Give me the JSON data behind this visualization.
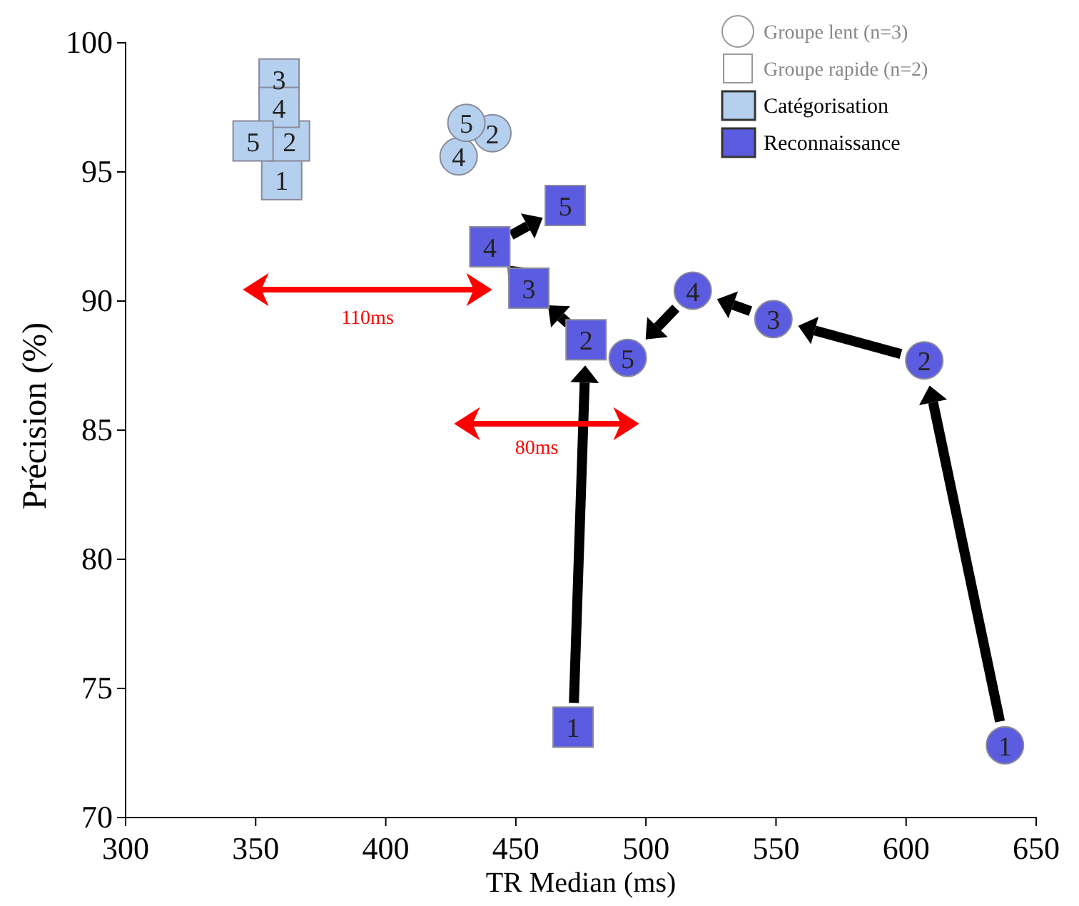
{
  "chart_data": {
    "type": "scatter",
    "xlabel": "TR Median (ms)",
    "ylabel": "Précision  (%)",
    "xlim": [
      300,
      650
    ],
    "xticks": [
      300,
      350,
      400,
      450,
      500,
      550,
      600,
      650
    ],
    "ylim": [
      70,
      100
    ],
    "yticks": [
      70,
      75,
      80,
      85,
      90,
      95,
      100
    ],
    "series": [
      {
        "marker": "square",
        "color": "#b4d0ee",
        "x": [
          360,
          363,
          359,
          359,
          349
        ],
        "values": [
          94.7,
          96.2,
          98.6,
          97.5,
          96.2
        ]
      },
      {
        "marker": "circle",
        "color": "#b4d0ee",
        "x": [
          null,
          441,
          null,
          428,
          431
        ],
        "values": [
          null,
          96.5,
          null,
          95.6,
          96.9
        ]
      },
      {
        "marker": "square",
        "color": "#5c5ce0",
        "x": [
          472,
          477,
          455,
          440,
          469
        ],
        "values": [
          73.5,
          88.5,
          90.5,
          92.1,
          93.7
        ]
      },
      {
        "marker": "circle",
        "color": "#5c5ce0",
        "x": [
          638,
          607,
          549,
          518,
          493
        ],
        "values": [
          72.8,
          87.7,
          89.3,
          90.4,
          87.8
        ]
      }
    ],
    "annotations": [
      "Groupe lent (n=3)",
      "Groupe rapide (n=2)",
      "Catégorisation",
      "Reconnaissance",
      "110ms",
      "80ms",
      {
        "text": "1",
        "x": 360,
        "y": 94.7
      },
      {
        "text": "2",
        "x": 363,
        "y": 96.2
      },
      {
        "text": "3",
        "x": 359,
        "y": 98.6
      },
      {
        "text": "4",
        "x": 359,
        "y": 97.5
      },
      {
        "text": "5",
        "x": 349,
        "y": 96.2
      },
      {
        "text": "2",
        "x": 441,
        "y": 96.5
      },
      {
        "text": "4",
        "x": 428,
        "y": 95.6
      },
      {
        "text": "5",
        "x": 431,
        "y": 96.9
      },
      {
        "text": "1",
        "x": 472,
        "y": 73.5
      },
      {
        "text": "2",
        "x": 477,
        "y": 88.5
      },
      {
        "text": "3",
        "x": 455,
        "y": 90.5
      },
      {
        "text": "4",
        "x": 440,
        "y": 92.1
      },
      {
        "text": "5",
        "x": 469,
        "y": 93.7
      },
      {
        "text": "1",
        "x": 638,
        "y": 72.8
      },
      {
        "text": "2",
        "x": 607,
        "y": 87.7
      },
      {
        "text": "3",
        "x": 549,
        "y": 89.3
      },
      {
        "text": "4",
        "x": 518,
        "y": 90.4
      },
      {
        "text": "5",
        "x": 493,
        "y": 87.8
      }
    ]
  }
}
